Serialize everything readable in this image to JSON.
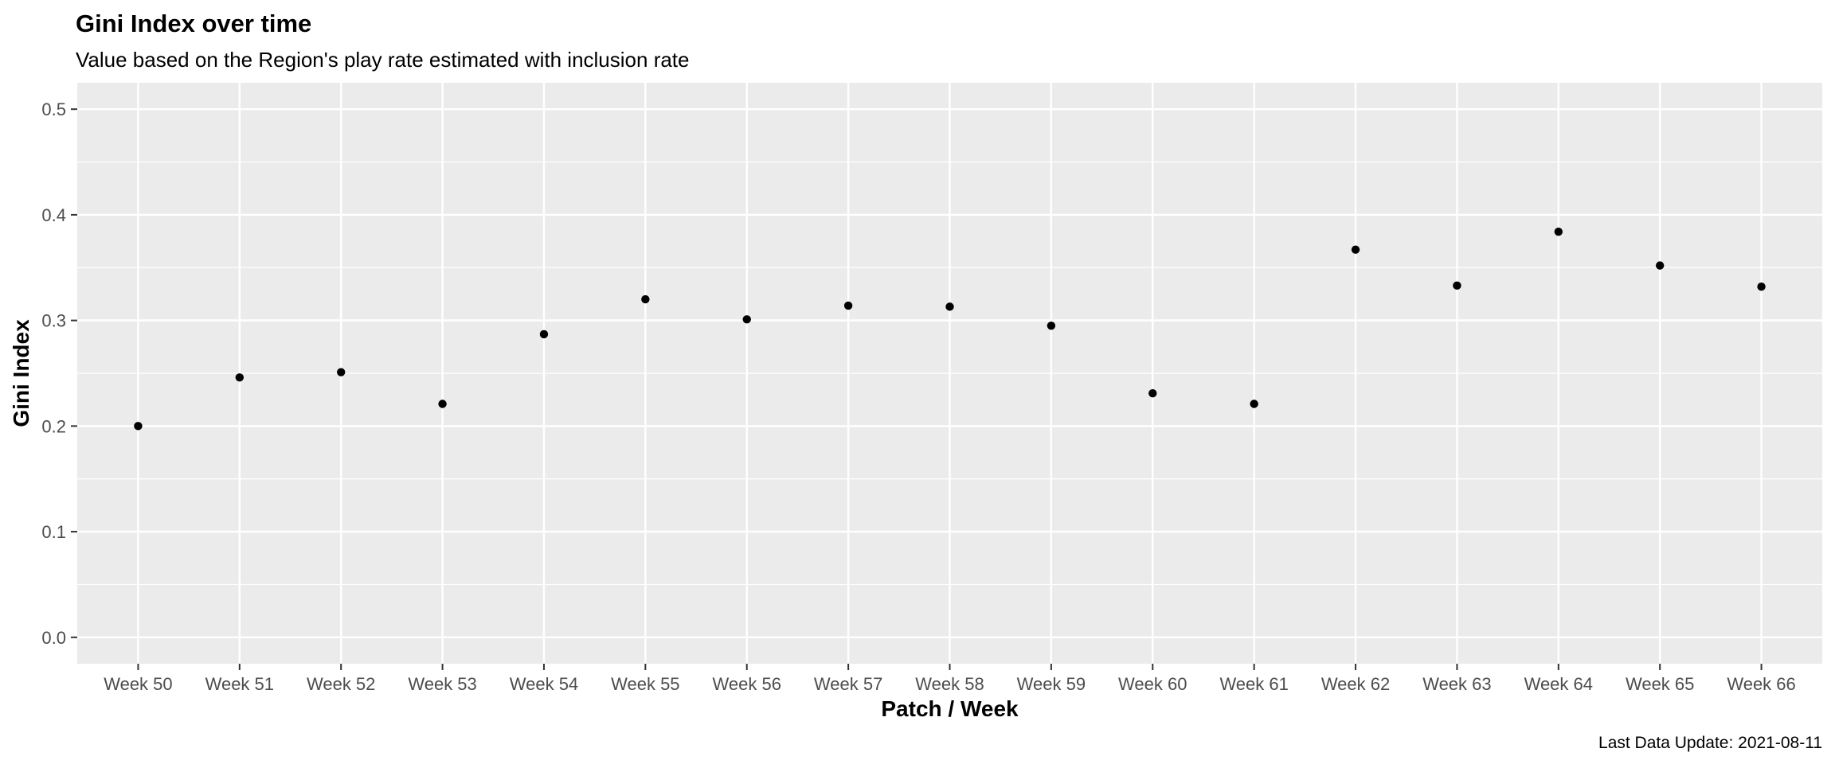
{
  "chart_data": {
    "type": "scatter",
    "title": "Gini Index over time",
    "subtitle": "Value based on the Region's play rate estimated with inclusion rate",
    "xlabel": "Patch / Week",
    "ylabel": "Gini Index",
    "caption": "Last Data Update: 2021-08-11",
    "categories": [
      "Week 50",
      "Week 51",
      "Week 52",
      "Week 53",
      "Week 54",
      "Week 55",
      "Week 56",
      "Week 57",
      "Week 58",
      "Week 59",
      "Week 60",
      "Week 61",
      "Week 62",
      "Week 63",
      "Week 64",
      "Week 65",
      "Week 66"
    ],
    "values": [
      0.2,
      0.246,
      0.251,
      0.221,
      0.287,
      0.32,
      0.301,
      0.314,
      0.313,
      0.295,
      0.231,
      0.221,
      0.367,
      0.333,
      0.384,
      0.352,
      0.332
    ],
    "ylim": [
      -0.025,
      0.525
    ],
    "yticks": [
      0.0,
      0.1,
      0.2,
      0.3,
      0.4,
      0.5
    ],
    "ytick_labels": [
      "0.0",
      "0.1",
      "0.2",
      "0.3",
      "0.4",
      "0.5"
    ],
    "grid": true,
    "colors": {
      "panel": "#ebebeb",
      "grid": "#ffffff",
      "point": "#000000",
      "tick_text": "#4d4d4d",
      "tick_mark": "#333333"
    }
  }
}
